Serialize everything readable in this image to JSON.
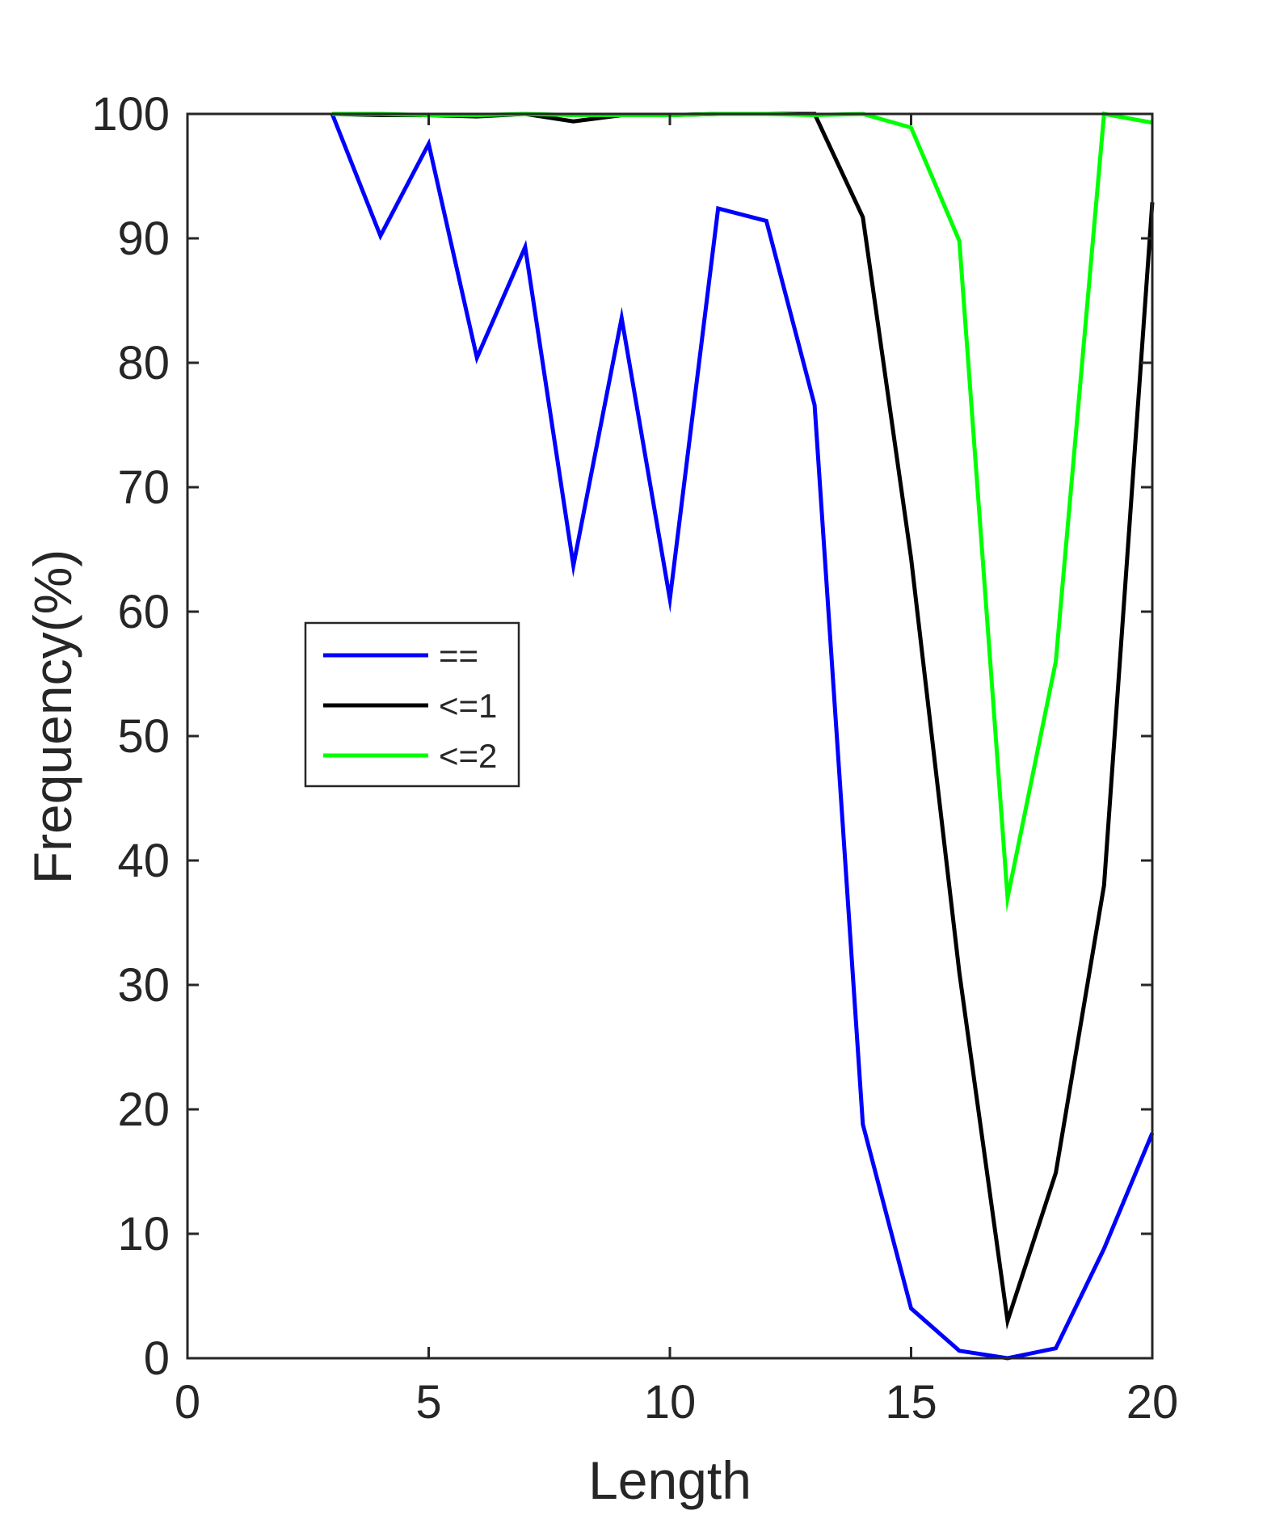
{
  "chart_data": {
    "type": "line",
    "title": "",
    "xlabel": "Length",
    "ylabel": "Frequency(%)",
    "xlim": [
      0,
      20
    ],
    "ylim": [
      0,
      100
    ],
    "xticks": [
      0,
      5,
      10,
      15,
      20
    ],
    "yticks": [
      0,
      10,
      20,
      30,
      40,
      50,
      60,
      70,
      80,
      90,
      100
    ],
    "grid": false,
    "legend_position": "middle-left",
    "x": [
      3,
      4,
      5,
      6,
      7,
      8,
      9,
      10,
      11,
      12,
      13,
      14,
      15,
      16,
      17,
      18,
      19,
      20
    ],
    "series": [
      {
        "name": "==",
        "color": "#0000ff",
        "values": [
          100,
          90.2,
          97.6,
          80.4,
          89.3,
          63.7,
          83.6,
          61.0,
          92.4,
          91.4,
          76.6,
          18.8,
          4.0,
          0.6,
          0.0,
          0.8,
          8.8,
          18.1
        ]
      },
      {
        "name": "<=1",
        "color": "#000000",
        "values": [
          100,
          99.9,
          99.9,
          99.8,
          100,
          99.4,
          99.9,
          99.9,
          100,
          100,
          100,
          91.7,
          64.3,
          31.0,
          3.0,
          14.9,
          38.0,
          92.9
        ]
      },
      {
        "name": "<=2",
        "color": "#00ff00",
        "values": [
          100,
          100,
          99.9,
          99.9,
          100,
          99.9,
          99.9,
          99.9,
          100,
          100,
          99.9,
          100,
          98.9,
          89.8,
          37.0,
          56.0,
          100,
          99.3
        ]
      }
    ]
  }
}
